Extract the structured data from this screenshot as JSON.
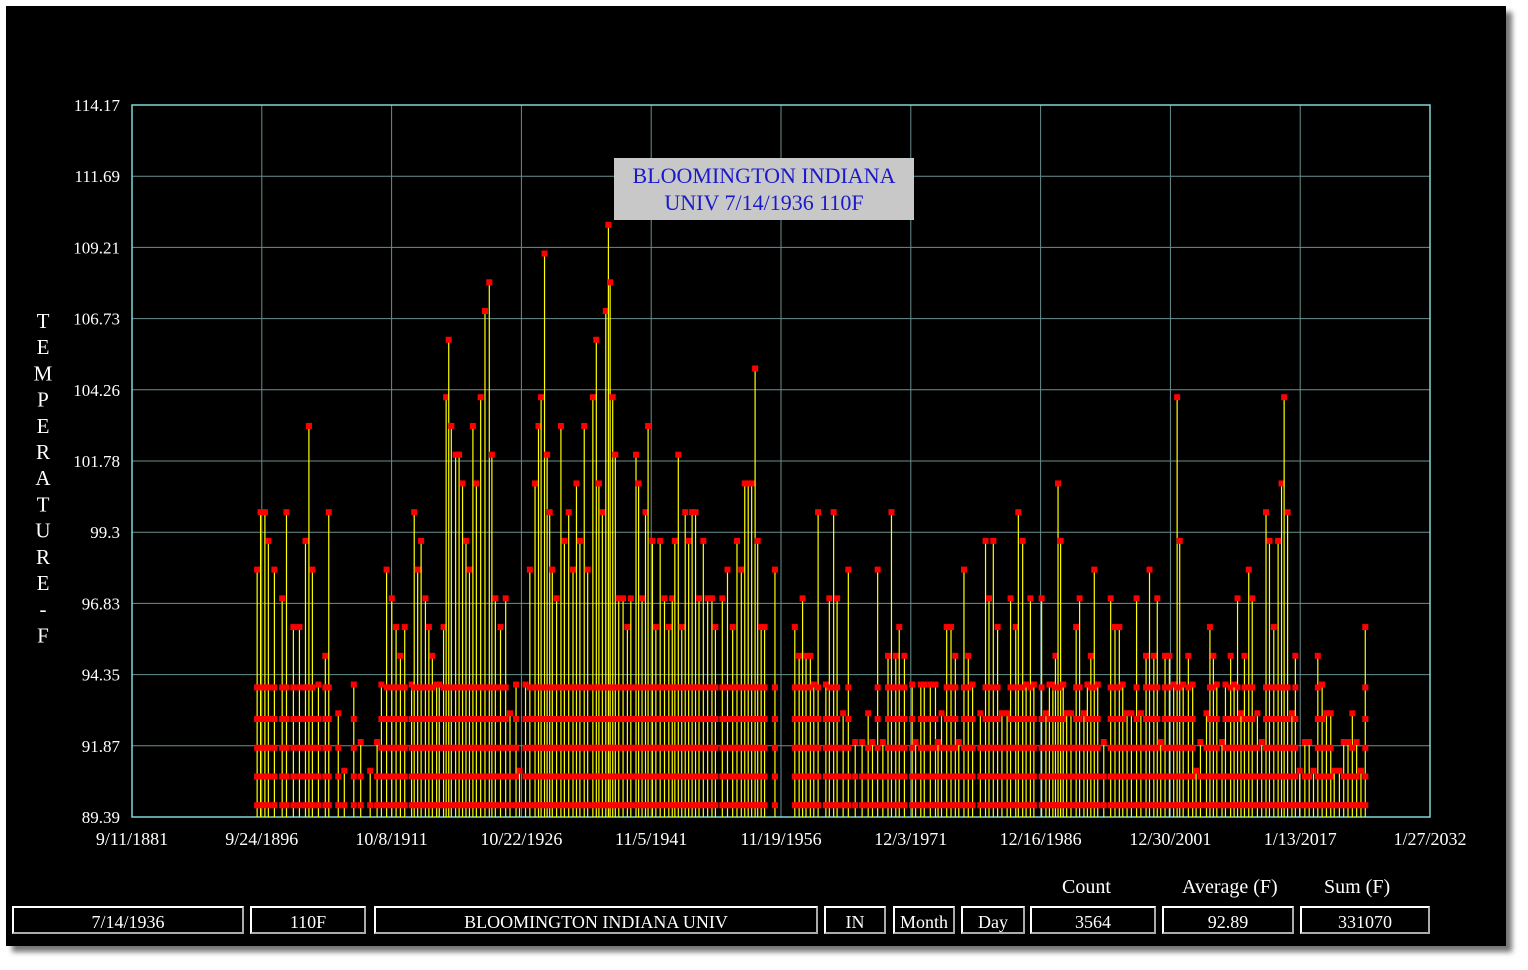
{
  "chart_data": {
    "type": "bar",
    "title": "BLOOMINGTON INDIANA UNIV 7/14/1936 110F",
    "title_lines": [
      "BLOOMINGTON INDIANA",
      "UNIV 7/14/1936 110F"
    ],
    "ylabel": "TEMPERATURE-F",
    "ylabel_letters": [
      "T",
      "E",
      "M",
      "P",
      "E",
      "R",
      "A",
      "T",
      "U",
      "R",
      "E",
      "-",
      "F"
    ],
    "ylim": [
      89.39,
      114.17
    ],
    "y_ticks": [
      "114.17",
      "111.69",
      "109.21",
      "106.73",
      "104.26",
      "101.78",
      "99.3",
      "96.83",
      "94.35",
      "91.87",
      "89.39"
    ],
    "x_ticks": [
      "9/11/1881",
      "9/24/1896",
      "10/8/1911",
      "10/22/1926",
      "11/5/1941",
      "11/19/1956",
      "12/3/1971",
      "12/16/1986",
      "12/30/2001",
      "1/13/2017",
      "1/27/2032"
    ],
    "xlim": [
      1881.7,
      2032.1
    ],
    "grid": true,
    "colors": {
      "stem": "#ffff00",
      "marker": "#ff0000",
      "grid": "#6a8f8f",
      "frame": "#7fd8d8",
      "background": "#000000"
    },
    "series": [
      {
        "values": [
          [
            1896.2,
            98
          ],
          [
            1896.6,
            100
          ],
          [
            1897.1,
            100
          ],
          [
            1897.5,
            99
          ],
          [
            1898.2,
            98
          ],
          [
            1899.1,
            97
          ],
          [
            1899.6,
            100
          ],
          [
            1900.4,
            96
          ],
          [
            1901.1,
            96
          ],
          [
            1901.8,
            99
          ],
          [
            1902.2,
            103
          ],
          [
            1902.6,
            98
          ],
          [
            1903.3,
            94
          ],
          [
            1904.1,
            95
          ],
          [
            1904.5,
            100
          ],
          [
            1905.6,
            93
          ],
          [
            1906.3,
            91
          ],
          [
            1907.4,
            94
          ],
          [
            1908.2,
            92
          ],
          [
            1909.3,
            91
          ],
          [
            1910.1,
            92
          ],
          [
            1910.6,
            94
          ],
          [
            1911.2,
            98
          ],
          [
            1911.8,
            97
          ],
          [
            1912.3,
            96
          ],
          [
            1912.8,
            95
          ],
          [
            1913.3,
            96
          ],
          [
            1914.1,
            94
          ],
          [
            1914.4,
            100
          ],
          [
            1914.8,
            98
          ],
          [
            1915.2,
            99
          ],
          [
            1915.7,
            97
          ],
          [
            1916.1,
            96
          ],
          [
            1916.5,
            95
          ],
          [
            1917.0,
            94
          ],
          [
            1917.3,
            94
          ],
          [
            1917.8,
            96
          ],
          [
            1918.1,
            104
          ],
          [
            1918.4,
            106
          ],
          [
            1918.7,
            103
          ],
          [
            1919.2,
            102
          ],
          [
            1919.6,
            102
          ],
          [
            1920.0,
            101
          ],
          [
            1920.4,
            99
          ],
          [
            1920.8,
            98
          ],
          [
            1921.2,
            103
          ],
          [
            1921.6,
            101
          ],
          [
            1922.1,
            104
          ],
          [
            1922.6,
            107
          ],
          [
            1923.1,
            108
          ],
          [
            1923.4,
            102
          ],
          [
            1923.8,
            97
          ],
          [
            1924.4,
            96
          ],
          [
            1925.0,
            97
          ],
          [
            1925.5,
            93
          ],
          [
            1926.2,
            94
          ],
          [
            1926.6,
            91
          ],
          [
            1927.3,
            94
          ],
          [
            1927.8,
            98
          ],
          [
            1928.4,
            101
          ],
          [
            1928.8,
            103
          ],
          [
            1929.1,
            104
          ],
          [
            1929.5,
            109
          ],
          [
            1929.8,
            102
          ],
          [
            1930.1,
            100
          ],
          [
            1930.4,
            98
          ],
          [
            1930.9,
            97
          ],
          [
            1931.4,
            103
          ],
          [
            1931.8,
            99
          ],
          [
            1932.3,
            100
          ],
          [
            1932.8,
            98
          ],
          [
            1933.2,
            101
          ],
          [
            1933.6,
            99
          ],
          [
            1934.1,
            103
          ],
          [
            1934.5,
            98
          ],
          [
            1935.1,
            104
          ],
          [
            1935.5,
            106
          ],
          [
            1935.8,
            101
          ],
          [
            1936.2,
            100
          ],
          [
            1936.6,
            107
          ],
          [
            1936.9,
            110
          ],
          [
            1937.1,
            108
          ],
          [
            1937.4,
            104
          ],
          [
            1937.7,
            102
          ],
          [
            1938.1,
            97
          ],
          [
            1938.6,
            97
          ],
          [
            1939.1,
            96
          ],
          [
            1939.5,
            97
          ],
          [
            1940.1,
            102
          ],
          [
            1940.4,
            101
          ],
          [
            1940.8,
            97
          ],
          [
            1941.2,
            100
          ],
          [
            1941.5,
            103
          ],
          [
            1942.0,
            99
          ],
          [
            1942.4,
            96
          ],
          [
            1942.9,
            99
          ],
          [
            1943.4,
            97
          ],
          [
            1943.9,
            96
          ],
          [
            1944.3,
            97
          ],
          [
            1944.6,
            99
          ],
          [
            1945.0,
            102
          ],
          [
            1945.4,
            96
          ],
          [
            1945.8,
            100
          ],
          [
            1946.2,
            99
          ],
          [
            1946.6,
            100
          ],
          [
            1947.0,
            100
          ],
          [
            1947.4,
            97
          ],
          [
            1947.9,
            99
          ],
          [
            1948.4,
            97
          ],
          [
            1948.9,
            97
          ],
          [
            1949.3,
            96
          ],
          [
            1950.1,
            97
          ],
          [
            1950.7,
            98
          ],
          [
            1951.3,
            96
          ],
          [
            1951.8,
            99
          ],
          [
            1952.3,
            98
          ],
          [
            1952.7,
            101
          ],
          [
            1953.1,
            101
          ],
          [
            1953.5,
            101
          ],
          [
            1953.9,
            105
          ],
          [
            1954.2,
            99
          ],
          [
            1954.6,
            96
          ],
          [
            1955.0,
            96
          ],
          [
            1956.2,
            98
          ],
          [
            1958.5,
            96
          ],
          [
            1959.0,
            95
          ],
          [
            1959.4,
            97
          ],
          [
            1959.8,
            95
          ],
          [
            1960.3,
            95
          ],
          [
            1960.7,
            94
          ],
          [
            1961.2,
            100
          ],
          [
            1962.1,
            94
          ],
          [
            1962.5,
            97
          ],
          [
            1963.0,
            100
          ],
          [
            1963.4,
            97
          ],
          [
            1964.1,
            93
          ],
          [
            1964.7,
            98
          ],
          [
            1965.5,
            92
          ],
          [
            1966.3,
            92
          ],
          [
            1967.0,
            93
          ],
          [
            1967.5,
            92
          ],
          [
            1968.1,
            98
          ],
          [
            1968.7,
            92
          ],
          [
            1969.3,
            95
          ],
          [
            1969.7,
            100
          ],
          [
            1970.2,
            95
          ],
          [
            1970.6,
            96
          ],
          [
            1971.2,
            95
          ],
          [
            1972.1,
            94
          ],
          [
            1972.5,
            92
          ],
          [
            1973.1,
            94
          ],
          [
            1973.5,
            94
          ],
          [
            1974.2,
            94
          ],
          [
            1974.8,
            94
          ],
          [
            1975.1,
            92
          ],
          [
            1975.5,
            93
          ],
          [
            1976.1,
            96
          ],
          [
            1976.6,
            96
          ],
          [
            1977.1,
            95
          ],
          [
            1977.5,
            92
          ],
          [
            1978.1,
            98
          ],
          [
            1978.6,
            95
          ],
          [
            1979.1,
            94
          ],
          [
            1980.0,
            93
          ],
          [
            1980.6,
            99
          ],
          [
            1981.0,
            97
          ],
          [
            1981.5,
            99
          ],
          [
            1982.0,
            96
          ],
          [
            1982.5,
            93
          ],
          [
            1983.1,
            93
          ],
          [
            1983.5,
            97
          ],
          [
            1984.1,
            96
          ],
          [
            1984.4,
            100
          ],
          [
            1984.9,
            99
          ],
          [
            1985.3,
            94
          ],
          [
            1985.8,
            97
          ],
          [
            1986.2,
            94
          ],
          [
            1987.1,
            97
          ],
          [
            1987.6,
            93
          ],
          [
            1988.0,
            94
          ],
          [
            1988.4,
            94
          ],
          [
            1988.7,
            95
          ],
          [
            1989.0,
            101
          ],
          [
            1989.3,
            99
          ],
          [
            1989.6,
            94
          ],
          [
            1990.0,
            93
          ],
          [
            1990.5,
            93
          ],
          [
            1991.1,
            96
          ],
          [
            1991.5,
            97
          ],
          [
            1992.0,
            93
          ],
          [
            1992.4,
            94
          ],
          [
            1992.8,
            95
          ],
          [
            1993.2,
            98
          ],
          [
            1993.6,
            94
          ],
          [
            1994.3,
            92
          ],
          [
            1995.1,
            97
          ],
          [
            1995.6,
            96
          ],
          [
            1996.1,
            96
          ],
          [
            1996.5,
            94
          ],
          [
            1997.0,
            93
          ],
          [
            1997.5,
            93
          ],
          [
            1998.1,
            97
          ],
          [
            1998.6,
            93
          ],
          [
            1999.2,
            95
          ],
          [
            1999.6,
            98
          ],
          [
            2000.1,
            95
          ],
          [
            2000.5,
            97
          ],
          [
            2000.9,
            92
          ],
          [
            2001.4,
            95
          ],
          [
            2001.9,
            95
          ],
          [
            2002.4,
            94
          ],
          [
            2002.8,
            104
          ],
          [
            2003.1,
            99
          ],
          [
            2003.5,
            94
          ],
          [
            2004.1,
            95
          ],
          [
            2004.6,
            94
          ],
          [
            2005.0,
            91
          ],
          [
            2005.5,
            92
          ],
          [
            2006.2,
            93
          ],
          [
            2006.6,
            96
          ],
          [
            2007.0,
            95
          ],
          [
            2007.4,
            94
          ],
          [
            2008.0,
            92
          ],
          [
            2008.4,
            94
          ],
          [
            2009.0,
            95
          ],
          [
            2009.4,
            94
          ],
          [
            2009.8,
            97
          ],
          [
            2010.2,
            93
          ],
          [
            2010.6,
            95
          ],
          [
            2011.1,
            98
          ],
          [
            2011.5,
            97
          ],
          [
            2012.1,
            93
          ],
          [
            2012.6,
            92
          ],
          [
            2013.1,
            100
          ],
          [
            2013.5,
            99
          ],
          [
            2014.0,
            96
          ],
          [
            2014.5,
            99
          ],
          [
            2014.9,
            101
          ],
          [
            2015.2,
            104
          ],
          [
            2015.6,
            100
          ],
          [
            2016.1,
            93
          ],
          [
            2016.5,
            95
          ],
          [
            2017.0,
            91
          ],
          [
            2017.6,
            92
          ],
          [
            2018.1,
            92
          ],
          [
            2018.6,
            91
          ],
          [
            2019.1,
            95
          ],
          [
            2019.6,
            94
          ],
          [
            2020.1,
            93
          ],
          [
            2020.6,
            93
          ],
          [
            2021.0,
            91
          ],
          [
            2021.6,
            91
          ],
          [
            2022.1,
            92
          ],
          [
            2022.6,
            92
          ],
          [
            2023.1,
            93
          ],
          [
            2023.6,
            92
          ],
          [
            2024.1,
            91
          ],
          [
            2024.6,
            96
          ]
        ]
      }
    ]
  },
  "stats": {
    "count_label": "Count",
    "average_label": "Average (F)",
    "sum_label": "Sum (F)",
    "date": "7/14/1936",
    "temp": "110F",
    "station": "BLOOMINGTON INDIANA UNIV",
    "state": "IN",
    "month": "Month",
    "day": "Day",
    "count": "3564",
    "average": "92.89",
    "sum": "331070"
  }
}
